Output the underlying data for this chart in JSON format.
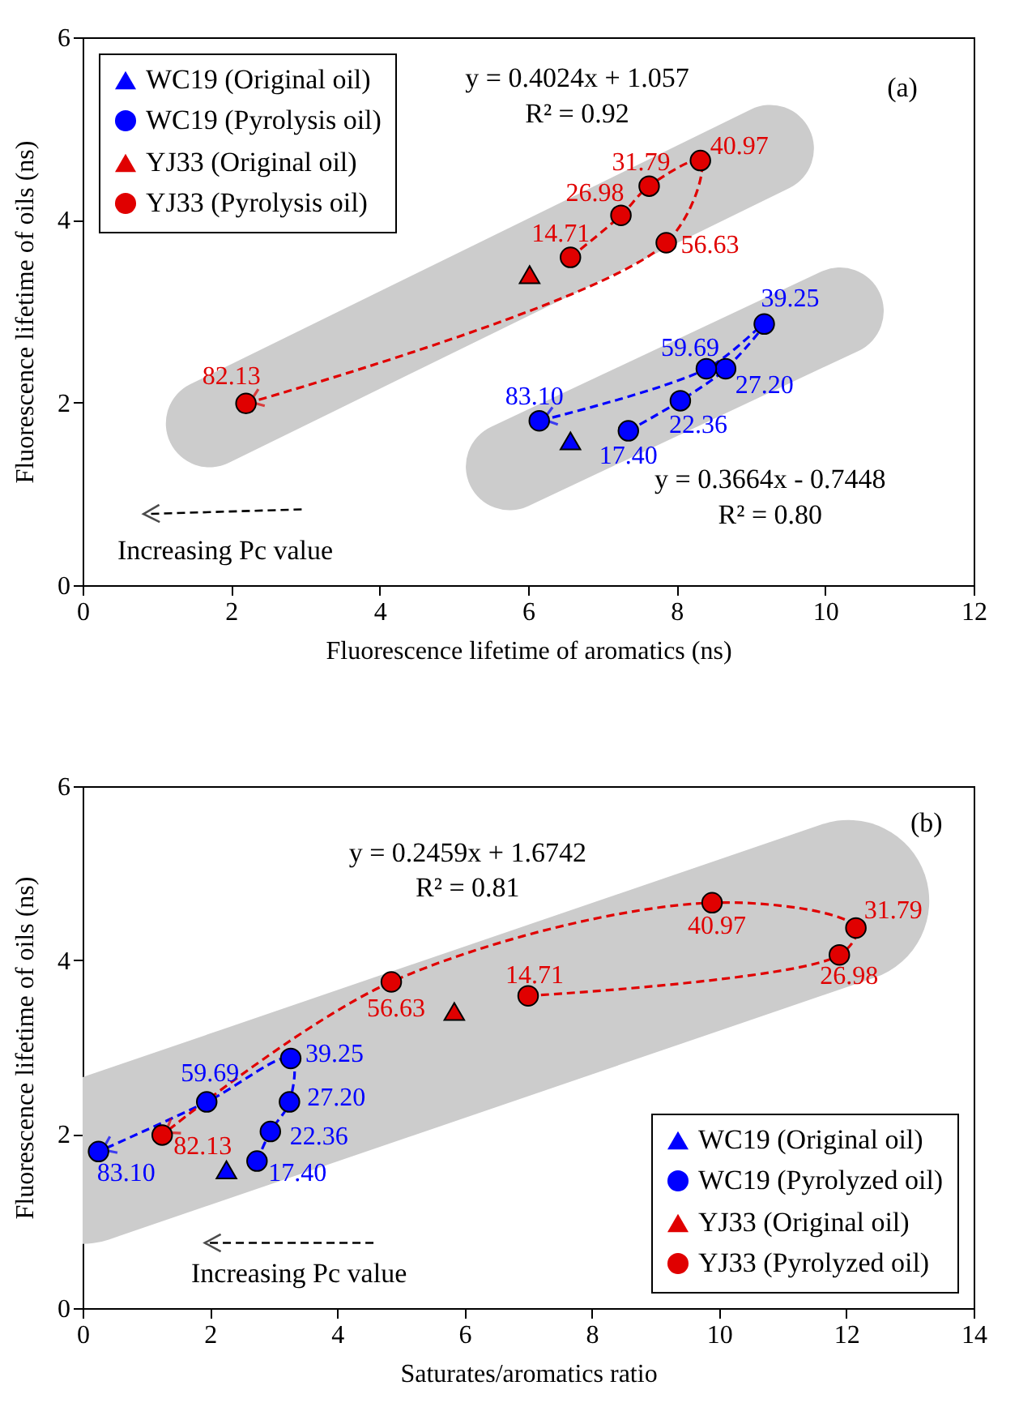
{
  "chart_data": [
    {
      "type": "scatter",
      "xlabel": "Fluorescence lifetime of aromatics (ns)",
      "ylabel": "Fluorescence lifetime of oils  (ns)",
      "xlim": [
        0,
        12
      ],
      "xticks": [
        0,
        2,
        4,
        6,
        8,
        10,
        12
      ],
      "ylim": [
        0,
        6
      ],
      "yticks": [
        0,
        2,
        4,
        6
      ],
      "grid": false,
      "legend": "top left",
      "annotations": [
        "y = 0.4024x + 1.057",
        "R² = 0.92",
        "y = 0.3664x - 0.7448",
        "R² = 0.80",
        "(a)",
        "Increasing Pc value",
        {
          "text": "17.40",
          "x": 7.35,
          "y": 1.69
        },
        {
          "text": "22.36",
          "x": 8.05,
          "y": 2.02
        },
        {
          "text": "27.20",
          "x": 8.66,
          "y": 2.37
        },
        {
          "text": "39.25",
          "x": 9.18,
          "y": 2.86
        },
        {
          "text": "59.69",
          "x": 8.4,
          "y": 2.37
        },
        {
          "text": "83.10",
          "x": 6.15,
          "y": 1.8
        },
        {
          "text": "14.71",
          "x": 6.57,
          "y": 3.59
        },
        {
          "text": "26.98",
          "x": 7.25,
          "y": 4.05
        },
        {
          "text": "31.79",
          "x": 7.63,
          "y": 4.37
        },
        {
          "text": "40.97",
          "x": 8.32,
          "y": 4.65
        },
        {
          "text": "56.63",
          "x": 7.86,
          "y": 3.75
        },
        {
          "text": "82.13",
          "x": 2.2,
          "y": 1.99
        }
      ],
      "series": [
        {
          "type": "line",
          "marker": "none",
          "color": "#cccccc",
          "x": [
            1.71,
            9.26
          ],
          "values": [
            1.77,
            4.78
          ]
        },
        {
          "type": "line",
          "marker": "none",
          "color": "#cccccc",
          "x": [
            5.75,
            10.2
          ],
          "values": [
            1.3,
            3.0
          ]
        },
        {
          "name": "WC19 (Original oil)",
          "marker": "triangle",
          "color": "#0000ff",
          "x": [
            6.57
          ],
          "values": [
            1.58
          ]
        },
        {
          "name": "WC19 (Pyrolysis oil)",
          "type": "line",
          "marker": "circle",
          "line_style": "dashed",
          "color": "#0000ff",
          "x": [
            7.35,
            8.05,
            8.66,
            9.18,
            8.4,
            6.15
          ],
          "values": [
            1.69,
            2.02,
            2.37,
            2.86,
            2.37,
            1.8
          ]
        },
        {
          "name": "YJ33 (Original oil)",
          "marker": "triangle",
          "color": "#e00000",
          "x": [
            6.02
          ],
          "values": [
            3.4
          ]
        },
        {
          "name": "YJ33 (Pyrolysis oil)",
          "type": "line",
          "marker": "circle",
          "line_style": "dashed",
          "color": "#e00000",
          "x": [
            6.57,
            7.25,
            7.63,
            8.32,
            7.86,
            2.2
          ],
          "values": [
            3.59,
            4.05,
            4.37,
            4.65,
            3.75,
            1.99
          ]
        }
      ]
    },
    {
      "type": "scatter",
      "xlabel": "Saturates/aromatics ratio",
      "ylabel": "Fluorescence lifetime of oils (ns)",
      "xlim": [
        0,
        14
      ],
      "xticks": [
        0,
        2,
        4,
        6,
        8,
        10,
        12,
        14
      ],
      "ylim": [
        0,
        6
      ],
      "yticks": [
        0,
        2,
        4,
        6
      ],
      "grid": false,
      "legend": "bottom right",
      "annotations": [
        "y = 0.2459x + 1.6742",
        "R² = 0.81",
        "(b)",
        "Increasing Pc value",
        {
          "text": "17.40",
          "x": 2.74,
          "y": 1.69
        },
        {
          "text": "22.36",
          "x": 2.95,
          "y": 2.03
        },
        {
          "text": "27.20",
          "x": 3.25,
          "y": 2.37
        },
        {
          "text": "39.25",
          "x": 3.27,
          "y": 2.87
        },
        {
          "text": "59.69",
          "x": 1.95,
          "y": 2.37
        },
        {
          "text": "83.10",
          "x": 0.25,
          "y": 1.8
        },
        {
          "text": "14.71",
          "x": 7.0,
          "y": 3.59
        },
        {
          "text": "26.98",
          "x": 11.89,
          "y": 4.06
        },
        {
          "text": "31.79",
          "x": 12.15,
          "y": 4.37
        },
        {
          "text": "40.97",
          "x": 9.89,
          "y": 4.66
        },
        {
          "text": "56.63",
          "x": 4.85,
          "y": 3.75
        },
        {
          "text": "82.13",
          "x": 1.25,
          "y": 1.99
        }
      ],
      "series": [
        {
          "type": "line",
          "marker": "none",
          "color": "#cccccc",
          "x": [
            0,
            12.03
          ],
          "values": [
            1.67,
            4.68
          ]
        },
        {
          "name": "WC19 (Original oil)",
          "marker": "triangle",
          "color": "#0000ff",
          "x": [
            2.26
          ],
          "values": [
            1.59
          ]
        },
        {
          "name": "WC19 (Pyrolyzed oil)",
          "type": "line",
          "marker": "circle",
          "line_style": "dashed",
          "color": "#0000ff",
          "x": [
            2.74,
            2.95,
            3.25,
            3.27,
            1.95,
            0.25
          ],
          "values": [
            1.69,
            2.03,
            2.37,
            2.87,
            2.37,
            1.8
          ]
        },
        {
          "name": "YJ33 (Original oil)",
          "marker": "triangle",
          "color": "#e00000",
          "x": [
            5.84
          ],
          "values": [
            3.41
          ]
        },
        {
          "name": "YJ33 (Pyrolyzed oil)",
          "type": "line",
          "marker": "circle",
          "line_style": "dashed",
          "color": "#e00000",
          "x": [
            7.0,
            11.89,
            12.15,
            9.89,
            4.85,
            1.25
          ],
          "values": [
            3.59,
            4.06,
            4.37,
            4.66,
            3.75,
            1.99
          ]
        }
      ]
    }
  ]
}
